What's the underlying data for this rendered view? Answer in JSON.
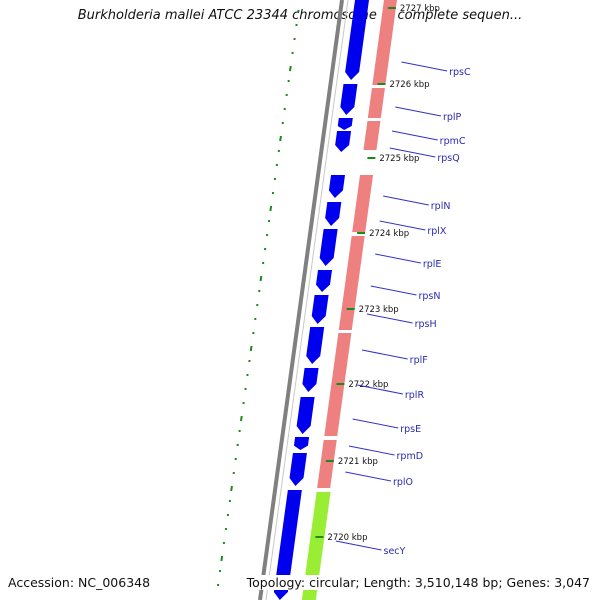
{
  "title": "Burkholderia mallei ATCC 23344 chromosome 1, complete sequen...",
  "accession": "Accession: NC_006348",
  "summary": "Topology: circular; Length: 3,510,148 bp; Genes: 3,047",
  "colors": {
    "backbone": "#808080",
    "gene_cds": "#0000ee",
    "rna_feature": "#ee8080",
    "green_feature": "#99ee33",
    "tick_mark": "#1a8a1a",
    "label_line": "#3030cc"
  },
  "kbp_markers": [
    "2727 kbp",
    "2726 kbp",
    "2725 kbp",
    "2724 kbp",
    "2723 kbp",
    "2722 kbp",
    "2721 kbp",
    "2720 kbp"
  ],
  "gene_labels": [
    "rpsC",
    "rplP",
    "rpmC",
    "rpsQ",
    "rplN",
    "rplX",
    "rplE",
    "rpsN",
    "rpsH",
    "rplF",
    "rplR",
    "rpsE",
    "rpmD",
    "rplO",
    "secY"
  ]
}
